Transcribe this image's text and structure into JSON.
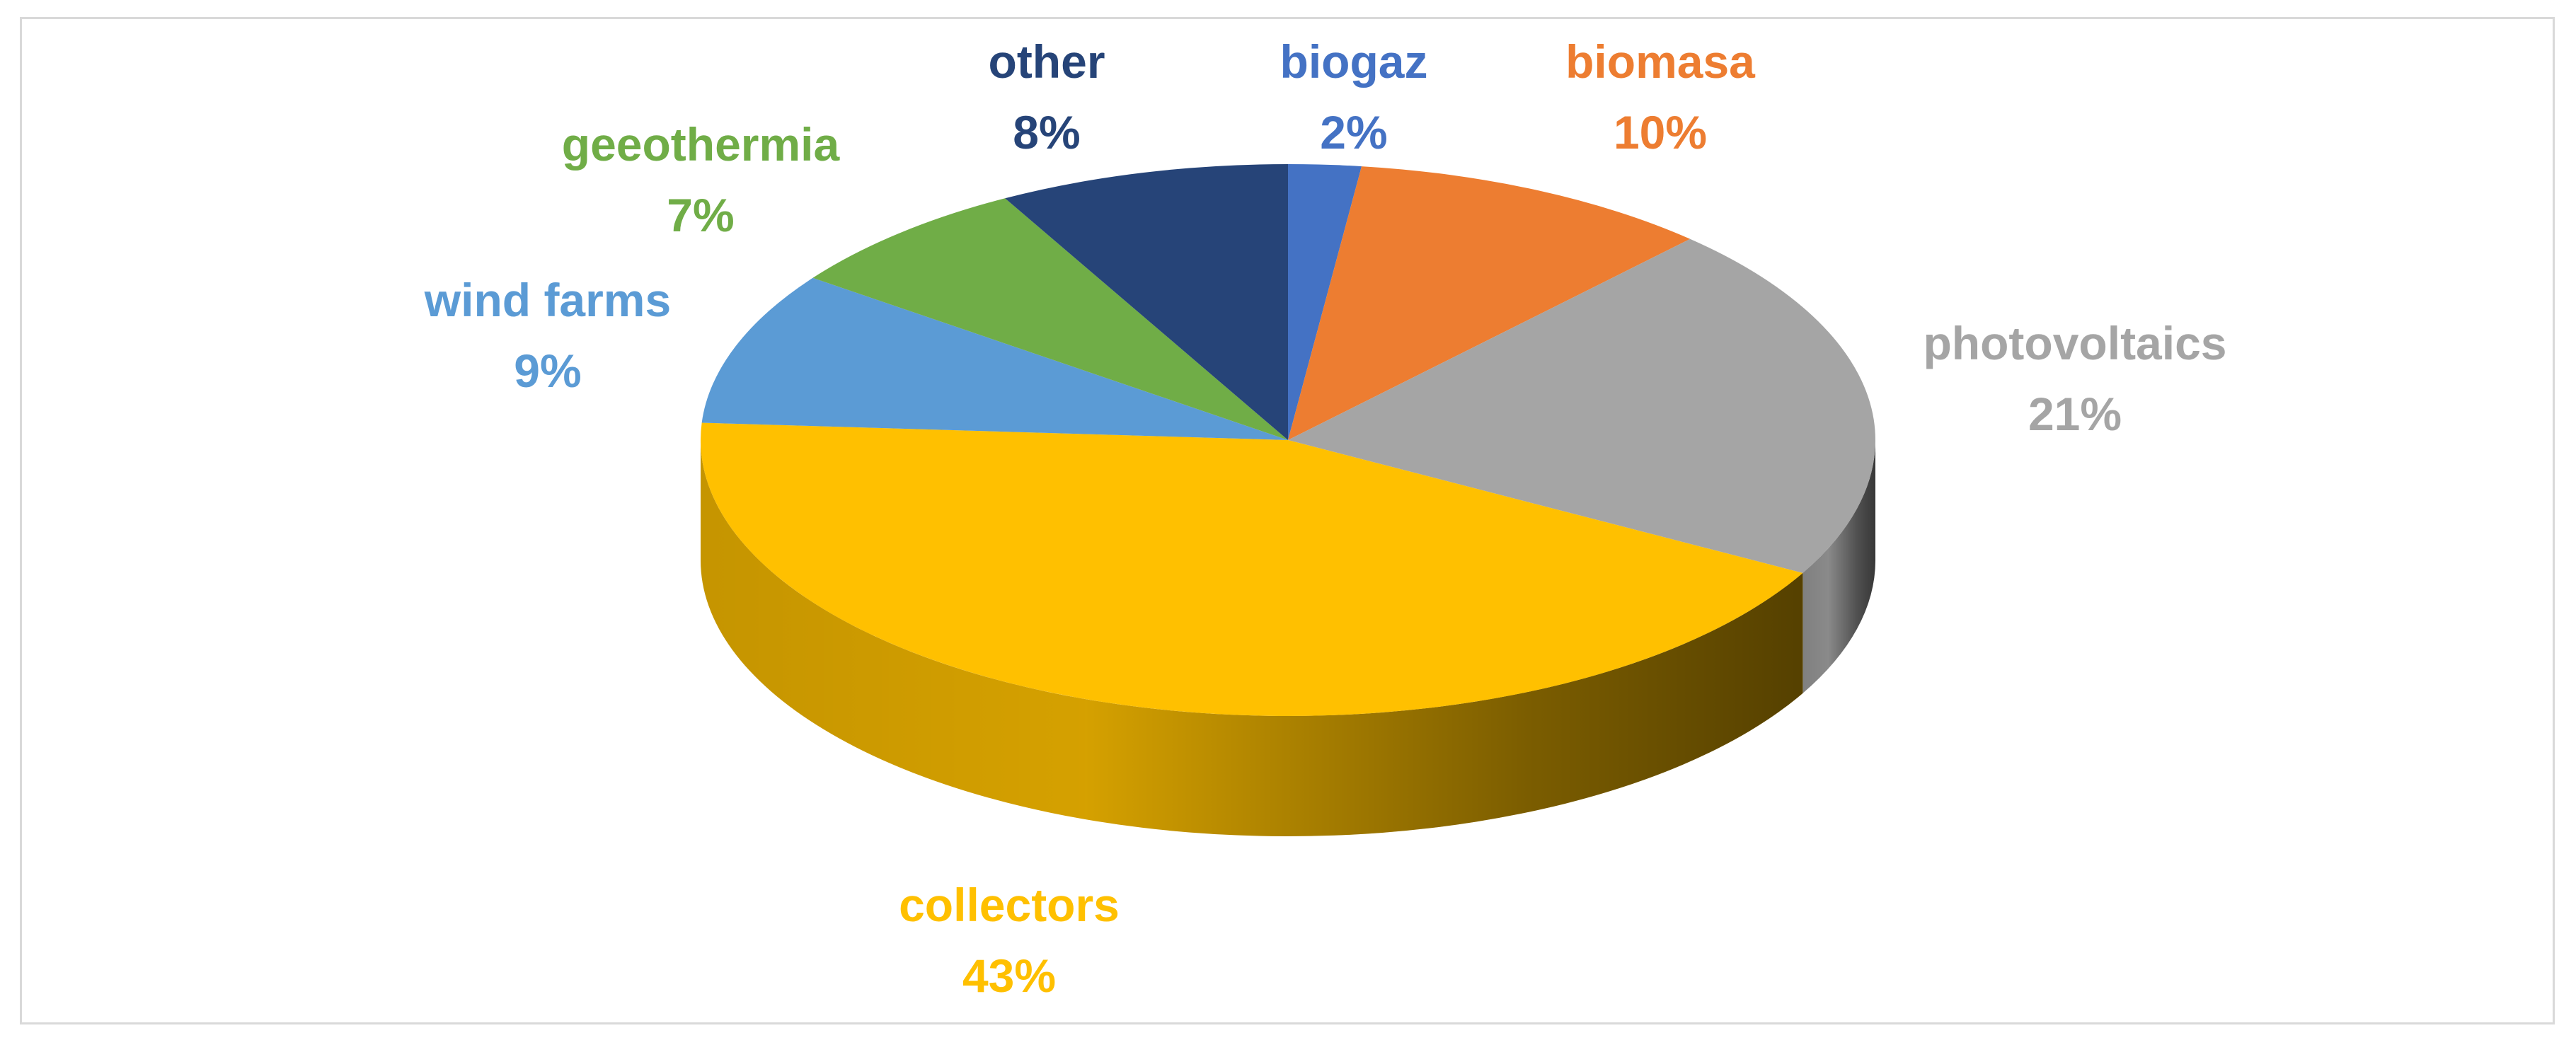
{
  "chart_data": {
    "type": "pie",
    "style": "3d-pie",
    "legend": "none",
    "slices": [
      {
        "label": "biogaz",
        "value": 2,
        "value_label": "2%",
        "color": "#4472C4"
      },
      {
        "label": "biomasa",
        "value": 10,
        "value_label": "10%",
        "color": "#ED7D31"
      },
      {
        "label": "photovoltaics",
        "value": 21,
        "value_label": "21%",
        "color": "#A5A5A5"
      },
      {
        "label": "collectors",
        "value": 43,
        "value_label": "43%",
        "color": "#FFC000"
      },
      {
        "label": "wind farms",
        "value": 9,
        "value_label": "9%",
        "color": "#5B9BD5"
      },
      {
        "label": "geeothermia",
        "value": 7,
        "value_label": "7%",
        "color": "#70AD47"
      },
      {
        "label": "other",
        "value": 8,
        "value_label": "8%",
        "color": "#264478"
      }
    ]
  }
}
